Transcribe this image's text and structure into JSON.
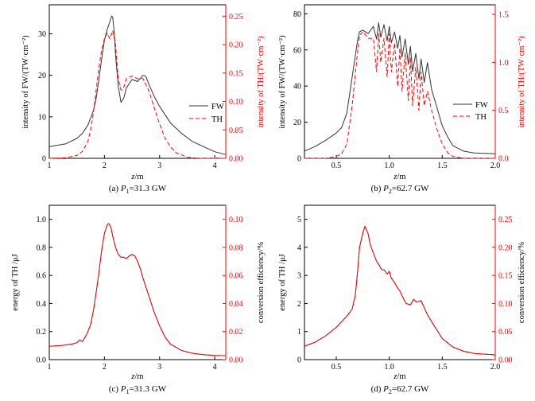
{
  "colors": {
    "fw": "#333333",
    "th": "#ff0000",
    "axis": "#000000",
    "axis_right": "#ff0000"
  },
  "chart_data": [
    {
      "id": "a",
      "type": "line",
      "caption_prefix": "(a) ",
      "caption_var": "P",
      "caption_sub": "1",
      "caption_rest": "=31.3 GW",
      "xlabel_var": "z",
      "xlabel_unit": "/m",
      "ylabel_left": "intensity of FW/(TW·cm⁻²)",
      "ylabel_right": "intensity of TH/(TW·cm⁻²)",
      "xlim": [
        1,
        4.2
      ],
      "ylim_left": [
        0,
        37
      ],
      "ylim_right": [
        0,
        0.27
      ],
      "xticks": [
        1,
        2,
        3,
        4
      ],
      "xtick_labels": [
        "1",
        "2",
        "3",
        "4"
      ],
      "yticks_left": [
        0,
        10,
        20,
        30
      ],
      "ytick_labels_left": [
        "0",
        "10",
        "20",
        "30"
      ],
      "yticks_right": [
        0,
        0.05,
        0.1,
        0.15,
        0.2,
        0.25
      ],
      "ytick_labels_right": [
        "0.00",
        "0.05",
        "0.10",
        "0.15",
        "0.20",
        "0.25"
      ],
      "legend": {
        "position": "right",
        "entries": [
          "FW",
          "TH"
        ]
      },
      "series": [
        {
          "name": "FW",
          "axis": "left",
          "style": "solid",
          "x": [
            1.0,
            1.3,
            1.5,
            1.6,
            1.7,
            1.8,
            1.85,
            1.9,
            1.95,
            2.0,
            2.05,
            2.1,
            2.13,
            2.15,
            2.18,
            2.2,
            2.25,
            2.3,
            2.35,
            2.4,
            2.5,
            2.6,
            2.7,
            2.75,
            2.8,
            2.9,
            3.0,
            3.2,
            3.4,
            3.6,
            3.8,
            4.0,
            4.2
          ],
          "values": [
            2.8,
            3.5,
            4.8,
            6.0,
            8.0,
            11.5,
            14.5,
            19.0,
            24.0,
            28.5,
            31.0,
            33.0,
            34.3,
            34.0,
            30.0,
            25.0,
            17.5,
            13.5,
            14.5,
            17.0,
            19.0,
            18.5,
            20.0,
            19.8,
            18.0,
            15.0,
            12.5,
            8.5,
            6.0,
            4.0,
            2.8,
            1.6,
            0.9
          ]
        },
        {
          "name": "TH",
          "axis": "right",
          "style": "dashed",
          "x": [
            1.0,
            1.3,
            1.5,
            1.6,
            1.7,
            1.75,
            1.8,
            1.85,
            1.9,
            1.95,
            2.0,
            2.05,
            2.1,
            2.15,
            2.2,
            2.25,
            2.3,
            2.35,
            2.4,
            2.5,
            2.6,
            2.7,
            2.8,
            2.9,
            3.0,
            3.1,
            3.2,
            3.3,
            3.5,
            3.7,
            4.0,
            4.2
          ],
          "values": [
            0.0,
            0.001,
            0.005,
            0.012,
            0.03,
            0.05,
            0.08,
            0.12,
            0.16,
            0.19,
            0.21,
            0.22,
            0.21,
            0.225,
            0.2,
            0.14,
            0.12,
            0.125,
            0.14,
            0.145,
            0.14,
            0.14,
            0.12,
            0.09,
            0.06,
            0.035,
            0.02,
            0.01,
            0.002,
            0.0,
            0.0,
            0.0
          ]
        }
      ]
    },
    {
      "id": "b",
      "type": "line",
      "caption_prefix": "(b) ",
      "caption_var": "P",
      "caption_sub": "2",
      "caption_rest": "=62.7 GW",
      "xlabel_var": "z",
      "xlabel_unit": "/m",
      "ylabel_left": "intensity of FW/(TW·cm⁻²)",
      "ylabel_right": "intensity of TH/(TW·cm⁻²)",
      "xlim": [
        0.2,
        2.0
      ],
      "ylim_left": [
        0,
        85
      ],
      "ylim_right": [
        0,
        1.6
      ],
      "xticks": [
        0.5,
        1.0,
        1.5,
        2.0
      ],
      "xtick_labels": [
        "0.5",
        "1.0",
        "1.5",
        "2.0"
      ],
      "yticks_left": [
        0,
        20,
        40,
        60,
        80
      ],
      "ytick_labels_left": [
        "0",
        "20",
        "40",
        "60",
        "80"
      ],
      "yticks_right": [
        0,
        0.5,
        1.0,
        1.5
      ],
      "ytick_labels_right": [
        "0.0",
        "0.5",
        "1.0",
        "1.5"
      ],
      "legend": {
        "position": "right",
        "entries": [
          "FW",
          "TH"
        ]
      },
      "series": [
        {
          "name": "FW",
          "axis": "left",
          "style": "solid",
          "x": [
            0.2,
            0.3,
            0.4,
            0.5,
            0.55,
            0.6,
            0.65,
            0.7,
            0.72,
            0.75,
            0.8,
            0.85,
            0.88,
            0.9,
            0.92,
            0.95,
            0.98,
            1.0,
            1.02,
            1.05,
            1.08,
            1.1,
            1.12,
            1.15,
            1.18,
            1.2,
            1.22,
            1.25,
            1.28,
            1.3,
            1.33,
            1.36,
            1.4,
            1.45,
            1.5,
            1.55,
            1.6,
            1.7,
            1.8,
            2.0
          ],
          "values": [
            4.0,
            6.5,
            10.0,
            14.0,
            17.0,
            25.0,
            45.0,
            65.0,
            70.0,
            71.0,
            69.0,
            73.0,
            66.0,
            75.0,
            67.0,
            74.0,
            65.0,
            73.0,
            64.0,
            70.0,
            61.0,
            68.0,
            56.0,
            66.0,
            52.0,
            62.0,
            48.0,
            58.0,
            44.0,
            55.0,
            42.0,
            53.0,
            38.0,
            28.0,
            18.0,
            12.0,
            7.0,
            4.0,
            3.0,
            2.5
          ]
        },
        {
          "name": "TH",
          "axis": "right",
          "style": "dashed",
          "x": [
            0.2,
            0.4,
            0.5,
            0.55,
            0.6,
            0.65,
            0.7,
            0.72,
            0.75,
            0.8,
            0.85,
            0.88,
            0.9,
            0.92,
            0.95,
            0.98,
            1.0,
            1.02,
            1.05,
            1.08,
            1.1,
            1.12,
            1.15,
            1.18,
            1.2,
            1.22,
            1.25,
            1.28,
            1.3,
            1.33,
            1.36,
            1.4,
            1.45,
            1.5,
            1.55,
            1.6,
            1.7,
            1.8,
            2.0
          ],
          "values": [
            0.0,
            0.0,
            0.02,
            0.05,
            0.15,
            0.55,
            1.1,
            1.28,
            1.32,
            1.25,
            1.25,
            0.9,
            1.3,
            1.0,
            1.25,
            0.85,
            1.3,
            0.9,
            1.2,
            0.75,
            1.15,
            0.7,
            1.1,
            0.6,
            1.05,
            0.55,
            0.95,
            0.5,
            0.9,
            0.55,
            0.7,
            0.5,
            0.3,
            0.15,
            0.06,
            0.02,
            0.0,
            0.0,
            0.0
          ]
        }
      ]
    },
    {
      "id": "c",
      "type": "line",
      "caption_prefix": "(c) ",
      "caption_var": "P",
      "caption_sub": "1",
      "caption_rest": "=31.3 GW",
      "xlabel_var": "z",
      "xlabel_unit": "/m",
      "ylabel_left": "energy of TH /μJ",
      "ylabel_right": "conversion efficiency/%",
      "xlim": [
        1,
        4.2
      ],
      "ylim_left": [
        0,
        1.1
      ],
      "ylim_right": [
        0,
        0.11
      ],
      "xticks": [
        1,
        2,
        3,
        4
      ],
      "xtick_labels": [
        "1",
        "2",
        "3",
        "4"
      ],
      "yticks_left": [
        0,
        0.2,
        0.4,
        0.6,
        0.8,
        1.0
      ],
      "ytick_labels_left": [
        "0.0",
        "0.2",
        "0.4",
        "0.6",
        "0.8",
        "1.0"
      ],
      "yticks_right": [
        0,
        0.02,
        0.04,
        0.06,
        0.08,
        0.1
      ],
      "ytick_labels_right": [
        "0.00",
        "0.02",
        "0.04",
        "0.06",
        "0.08",
        "0.10"
      ],
      "series": [
        {
          "name": "energy",
          "axis": "left",
          "style": "solid",
          "x": [
            1.0,
            1.2,
            1.4,
            1.5,
            1.55,
            1.6,
            1.65,
            1.7,
            1.75,
            1.8,
            1.85,
            1.9,
            1.95,
            2.0,
            2.05,
            2.08,
            2.12,
            2.15,
            2.2,
            2.25,
            2.3,
            2.35,
            2.4,
            2.45,
            2.5,
            2.55,
            2.6,
            2.65,
            2.7,
            2.8,
            2.9,
            3.0,
            3.1,
            3.2,
            3.4,
            3.6,
            3.8,
            4.0,
            4.2
          ],
          "values": [
            0.095,
            0.1,
            0.11,
            0.12,
            0.14,
            0.13,
            0.16,
            0.2,
            0.25,
            0.35,
            0.48,
            0.62,
            0.78,
            0.9,
            0.96,
            0.97,
            0.94,
            0.88,
            0.8,
            0.75,
            0.73,
            0.73,
            0.72,
            0.74,
            0.75,
            0.74,
            0.7,
            0.65,
            0.58,
            0.46,
            0.34,
            0.24,
            0.16,
            0.11,
            0.065,
            0.045,
            0.035,
            0.03,
            0.028
          ]
        },
        {
          "name": "efficiency",
          "axis": "right",
          "style": "solid",
          "x": [
            1.0,
            1.2,
            1.4,
            1.5,
            1.55,
            1.6,
            1.65,
            1.7,
            1.75,
            1.8,
            1.85,
            1.9,
            1.95,
            2.0,
            2.05,
            2.08,
            2.12,
            2.15,
            2.2,
            2.25,
            2.3,
            2.35,
            2.4,
            2.45,
            2.5,
            2.55,
            2.6,
            2.65,
            2.7,
            2.8,
            2.9,
            3.0,
            3.1,
            3.2,
            3.4,
            3.6,
            3.8,
            4.0,
            4.2
          ],
          "values": [
            0.0095,
            0.01,
            0.011,
            0.012,
            0.014,
            0.013,
            0.016,
            0.02,
            0.025,
            0.035,
            0.048,
            0.062,
            0.078,
            0.09,
            0.096,
            0.097,
            0.094,
            0.088,
            0.08,
            0.075,
            0.073,
            0.073,
            0.072,
            0.074,
            0.075,
            0.074,
            0.07,
            0.065,
            0.058,
            0.046,
            0.034,
            0.024,
            0.016,
            0.011,
            0.0065,
            0.0045,
            0.0035,
            0.003,
            0.0028
          ]
        }
      ]
    },
    {
      "id": "d",
      "type": "line",
      "caption_prefix": "(d) ",
      "caption_var": "P",
      "caption_sub": "2",
      "caption_rest": "=62.7 GW",
      "xlabel_var": "z",
      "xlabel_unit": "/m",
      "ylabel_left": "energy of TH /μJ",
      "ylabel_right": "conversion efficiency/%",
      "xlim": [
        0.2,
        2.0
      ],
      "ylim_left": [
        0,
        5.5
      ],
      "ylim_right": [
        0,
        0.275
      ],
      "xticks": [
        0.5,
        1.0,
        1.5,
        2.0
      ],
      "xtick_labels": [
        "0.5",
        "1.0",
        "1.5",
        "2.0"
      ],
      "yticks_left": [
        0,
        1,
        2,
        3,
        4,
        5
      ],
      "ytick_labels_left": [
        "0",
        "1",
        "2",
        "3",
        "4",
        "5"
      ],
      "yticks_right": [
        0,
        0.05,
        0.1,
        0.15,
        0.2,
        0.25
      ],
      "ytick_labels_right": [
        "0.00",
        "0.05",
        "0.10",
        "0.15",
        "0.20",
        "0.25"
      ],
      "series": [
        {
          "name": "energy",
          "axis": "left",
          "style": "solid",
          "x": [
            0.2,
            0.3,
            0.4,
            0.5,
            0.55,
            0.6,
            0.65,
            0.68,
            0.7,
            0.72,
            0.75,
            0.77,
            0.8,
            0.82,
            0.85,
            0.88,
            0.9,
            0.93,
            0.95,
            0.98,
            1.0,
            1.02,
            1.05,
            1.08,
            1.1,
            1.13,
            1.16,
            1.2,
            1.23,
            1.26,
            1.3,
            1.33,
            1.36,
            1.4,
            1.45,
            1.5,
            1.6,
            1.7,
            1.8,
            2.0
          ],
          "values": [
            0.48,
            0.62,
            0.85,
            1.15,
            1.35,
            1.55,
            1.8,
            2.3,
            3.1,
            4.0,
            4.5,
            4.75,
            4.5,
            4.1,
            3.8,
            3.5,
            3.4,
            3.2,
            3.2,
            3.05,
            3.15,
            2.9,
            2.75,
            2.55,
            2.45,
            2.2,
            2.0,
            1.95,
            2.15,
            2.05,
            2.1,
            1.85,
            1.6,
            1.35,
            1.05,
            0.75,
            0.45,
            0.3,
            0.22,
            0.17
          ]
        },
        {
          "name": "efficiency",
          "axis": "right",
          "style": "solid",
          "x": [
            0.2,
            0.3,
            0.4,
            0.5,
            0.55,
            0.6,
            0.65,
            0.68,
            0.7,
            0.72,
            0.75,
            0.77,
            0.8,
            0.82,
            0.85,
            0.88,
            0.9,
            0.93,
            0.95,
            0.98,
            1.0,
            1.02,
            1.05,
            1.08,
            1.1,
            1.13,
            1.16,
            1.2,
            1.23,
            1.26,
            1.3,
            1.33,
            1.36,
            1.4,
            1.45,
            1.5,
            1.6,
            1.7,
            1.8,
            2.0
          ],
          "values": [
            0.024,
            0.031,
            0.0425,
            0.0575,
            0.0675,
            0.0775,
            0.09,
            0.115,
            0.155,
            0.2,
            0.225,
            0.2375,
            0.225,
            0.205,
            0.19,
            0.175,
            0.17,
            0.16,
            0.16,
            0.1525,
            0.1575,
            0.145,
            0.1375,
            0.1275,
            0.1225,
            0.11,
            0.1,
            0.0975,
            0.1075,
            0.1025,
            0.105,
            0.0925,
            0.08,
            0.0675,
            0.0525,
            0.0375,
            0.0225,
            0.015,
            0.011,
            0.0085
          ]
        }
      ]
    }
  ]
}
